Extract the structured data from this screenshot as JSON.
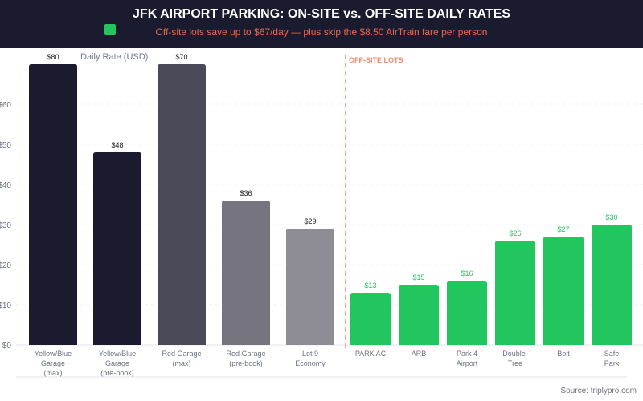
{
  "chart_data": {
    "type": "bar",
    "title": "JFK AIRPORT PARKING: ON-SITE vs. OFF-SITE DAILY RATES",
    "subtitle": "Off-site lots save up to $67/day — plus skip the $8.50 AirTrain fare per person",
    "ylabel": "Daily Rate (USD)",
    "ylim": [
      0,
      70
    ],
    "yticks": [
      "$0",
      "$10",
      "$20",
      "$30",
      "$40",
      "$50",
      "$60"
    ],
    "grid": true,
    "annotation": "OFF-SITE LOTS",
    "source": "Source: triplypro.com",
    "categories": [
      [
        "Yellow/Blue",
        "Garage",
        "(max)"
      ],
      [
        "Yellow/Blue",
        "Garage",
        "(pre-book)"
      ],
      [
        "Red Garage",
        "(max)"
      ],
      [
        "Red Garage",
        "(pre-book)"
      ],
      [
        "Lot 9",
        "Economy"
      ],
      [
        "PARK AC"
      ],
      [
        "ARB"
      ],
      [
        "Park 4",
        "Airport"
      ],
      [
        "Double-",
        "Tree"
      ],
      [
        "Bolt"
      ],
      [
        "Safe",
        "Park"
      ]
    ],
    "values": [
      80,
      48,
      70,
      36,
      29,
      13,
      15,
      16,
      26,
      27,
      30
    ],
    "value_labels": [
      "$80",
      "$48",
      "$70",
      "$36",
      "$29",
      "$13",
      "$15",
      "$16",
      "$26",
      "$27",
      "$30"
    ],
    "groups": [
      "on-site",
      "on-site",
      "on-site",
      "on-site",
      "on-site",
      "off-site",
      "off-site",
      "off-site",
      "off-site",
      "off-site",
      "off-site"
    ],
    "colors": [
      "#1a1b2e",
      "#1a1b2e",
      "#4a4958",
      "#76757f",
      "#8e8d96",
      "#22c55e",
      "#22c55e",
      "#22c55e",
      "#22c55e",
      "#22c55e",
      "#22c55e"
    ],
    "accent": "#e8694f"
  }
}
